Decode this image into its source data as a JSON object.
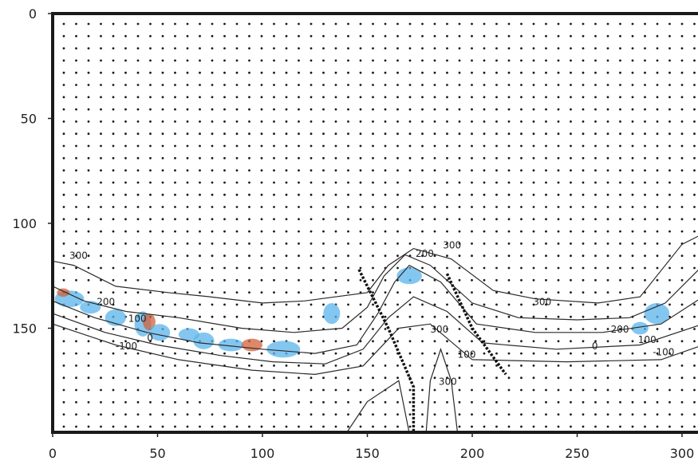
{
  "chart_data": {
    "type": "contour",
    "title": "",
    "xlabel": "",
    "ylabel": "",
    "xlim": [
      0,
      305
    ],
    "ylim": [
      0,
      200
    ],
    "y_inverted": true,
    "grid": false,
    "x_ticks": [
      0,
      50,
      100,
      150,
      200,
      250,
      300
    ],
    "y_ticks": [
      0,
      50,
      100,
      150
    ],
    "vector_field": "dot-grid",
    "colors": {
      "frame": "#1a1a1a",
      "contour": "#2b2b2b",
      "blue_fill": "#59b4ec",
      "red_fill": "#d2603a",
      "dots": "#1a1a1a"
    },
    "contour_levels": [
      300,
      200,
      100,
      0,
      -100
    ],
    "contour_labels": [
      {
        "text": "300",
        "x": 8,
        "y": 117
      },
      {
        "text": "200",
        "x": 21,
        "y": 139
      },
      {
        "text": "100",
        "x": 36,
        "y": 147
      },
      {
        "text": "0",
        "x": 45,
        "y": 156
      },
      {
        "text": "-100",
        "x": 30,
        "y": 160
      },
      {
        "text": "300",
        "x": 186,
        "y": 112
      },
      {
        "text": "200",
        "x": 173,
        "y": 116
      },
      {
        "text": "300",
        "x": 180,
        "y": 152
      },
      {
        "text": "100",
        "x": 193,
        "y": 164
      },
      {
        "text": "300",
        "x": 184,
        "y": 177
      },
      {
        "text": "300",
        "x": 229,
        "y": 139
      },
      {
        "text": "200",
        "x": 266,
        "y": 152
      },
      {
        "text": "100",
        "x": 279,
        "y": 157
      },
      {
        "text": "0",
        "x": 257,
        "y": 160
      },
      {
        "text": "-100",
        "x": 286,
        "y": 163
      }
    ]
  }
}
